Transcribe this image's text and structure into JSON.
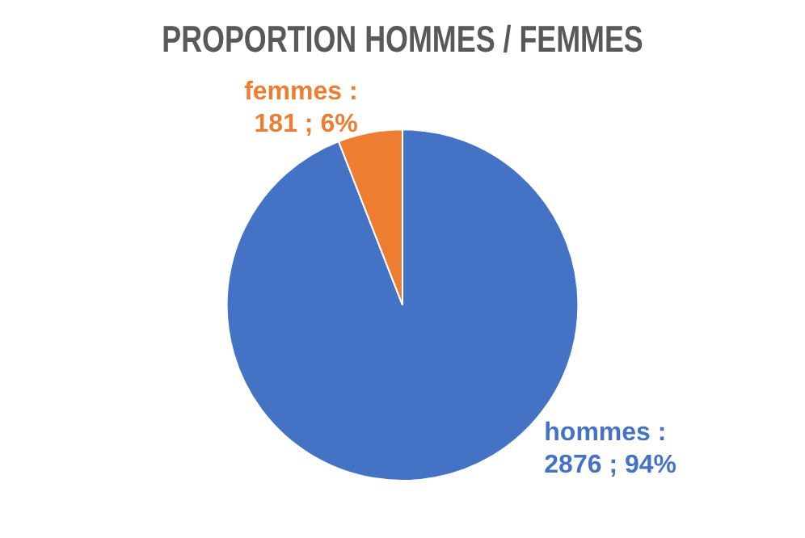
{
  "chart_data": {
    "type": "pie",
    "title": "PROPORTION HOMMES / FEMMES",
    "categories": [
      "hommes",
      "femmes"
    ],
    "values": [
      2876,
      181
    ],
    "colors": [
      "#4472c4",
      "#ed7d31"
    ],
    "value_labels": [
      ":\n2876 ; 94%",
      ":\n181 ; 6%"
    ],
    "legend": false
  }
}
